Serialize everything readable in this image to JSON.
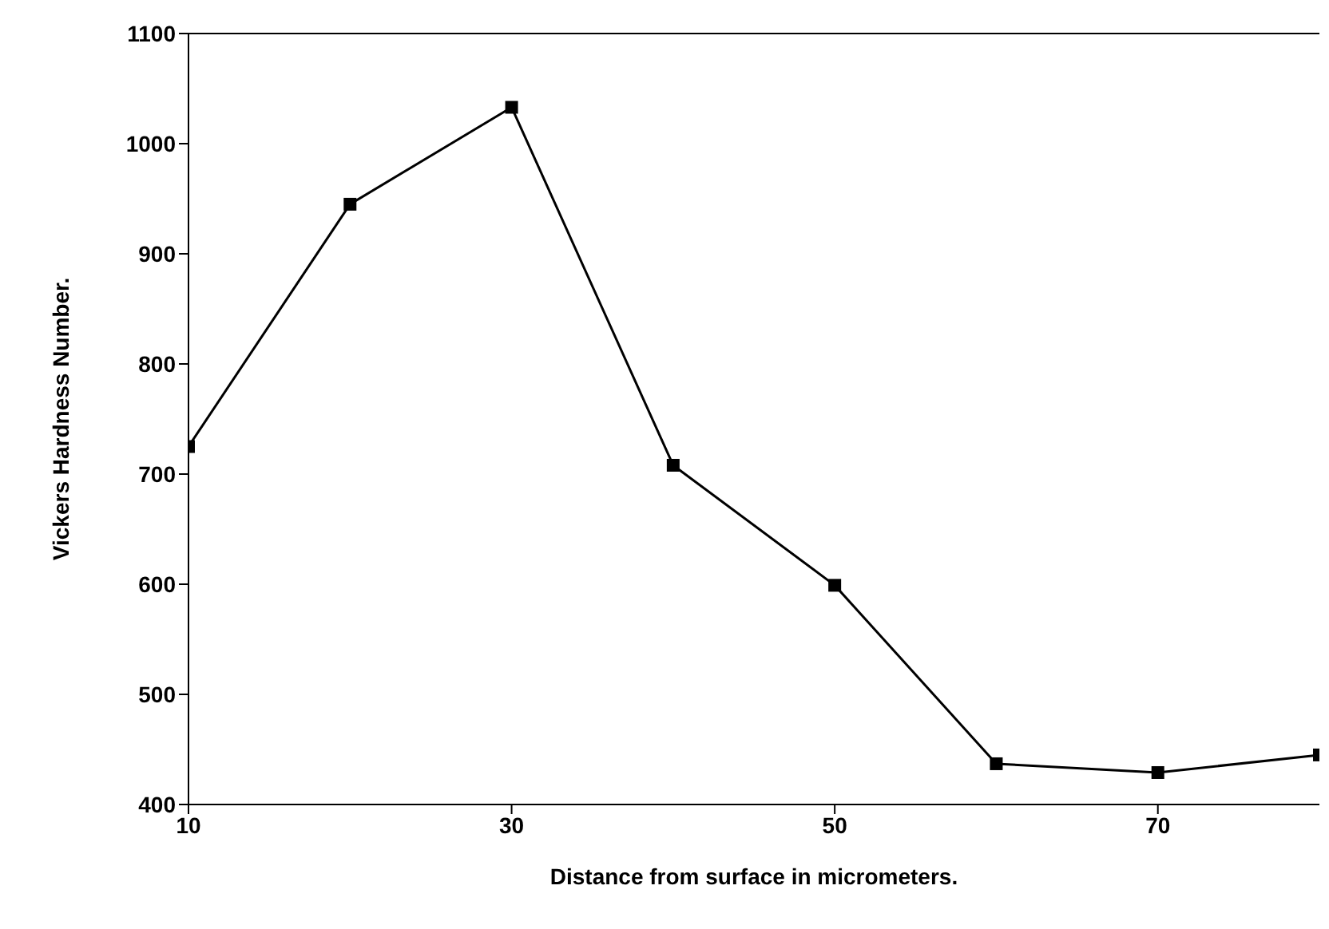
{
  "chart_data": {
    "type": "line",
    "xlabel": "Distance from surface in micrometers.",
    "ylabel": "Vickers Hardness Number.",
    "x": [
      10,
      20,
      30,
      40,
      50,
      60,
      70,
      80
    ],
    "series": [
      {
        "color": "#000000",
        "values": [
          725,
          945,
          1033,
          708,
          599,
          437,
          429,
          445
        ]
      }
    ],
    "xlim": [
      10,
      80
    ],
    "xticks": [
      10,
      30,
      50,
      70
    ],
    "ylim": [
      400,
      1100
    ],
    "yticks": [
      400,
      500,
      600,
      700,
      800,
      900,
      1000,
      1100
    ],
    "marker": "square",
    "line_style": "solid",
    "grid": false,
    "legend": false
  }
}
